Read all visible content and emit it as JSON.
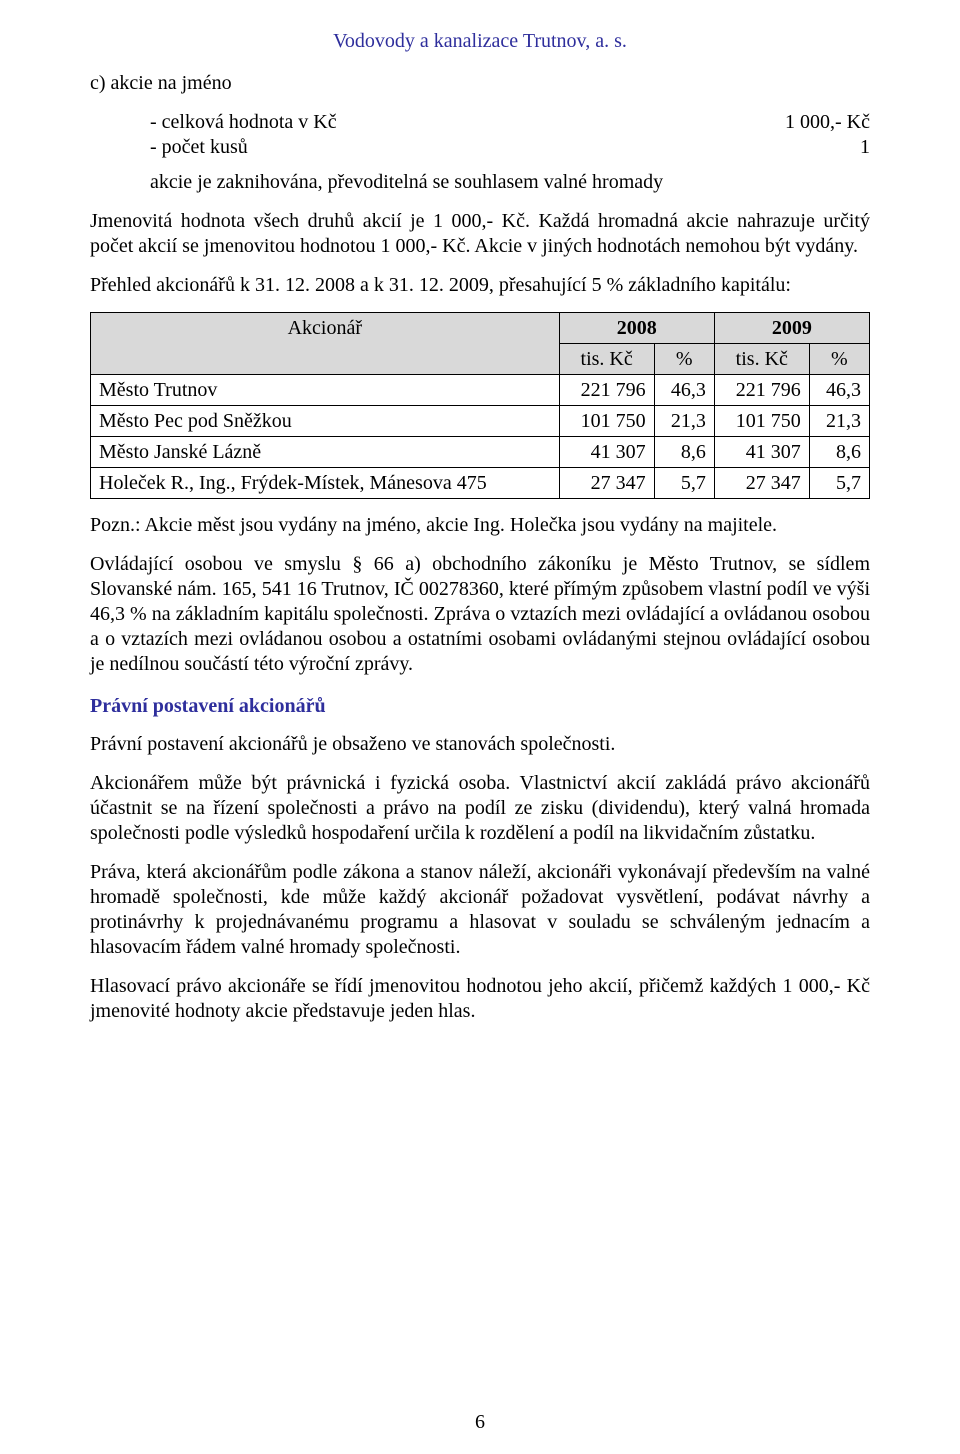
{
  "doc_header": "Vodovody a kanalizace Trutnov, a. s.",
  "section_c": {
    "title": "c) akcie na jméno",
    "line_value_label": "- celková hodnota v Kč",
    "line_value_amount": "1 000,- Kč",
    "line_count_label": "- počet kusů",
    "line_count_amount": "1",
    "book_entry_line": "akcie je zaknihována, převoditelná se souhlasem valné hromady"
  },
  "nominal_paragraph": "Jmenovitá hodnota všech druhů akcií je 1 000,- Kč. Každá hromadná akcie nahrazuje určitý počet akcií se jmenovitou hodnotou 1 000,- Kč. Akcie v jiných hodnotách nemohou být vydány.",
  "shareholders_intro": "Přehled akcionářů k 31. 12. 2008 a k 31. 12. 2009, přesahující 5 % základního kapitálu:",
  "shareholders_table": {
    "header_name": "Akcionář",
    "year_a": "2008",
    "year_b": "2009",
    "sub_value": "tis. Kč",
    "sub_pct": "%",
    "rows": [
      {
        "name": "Město Trutnov",
        "va": "221 796",
        "pa": "46,3",
        "vb": "221 796",
        "pb": "46,3"
      },
      {
        "name": "Město Pec pod Sněžkou",
        "va": "101 750",
        "pa": "21,3",
        "vb": "101 750",
        "pb": "21,3"
      },
      {
        "name": "Město Janské Lázně",
        "va": "41 307",
        "pa": "8,6",
        "vb": "41 307",
        "pb": "8,6"
      },
      {
        "name": "Holeček R., Ing., Frýdek-Místek, Mánesova 475",
        "va": "27 347",
        "pa": "5,7",
        "vb": "27 347",
        "pb": "5,7"
      }
    ]
  },
  "note_paragraph": "Pozn.: Akcie měst jsou vydány na jméno, akcie Ing. Holečka jsou vydány na majitele.",
  "controlling_paragraph": "Ovládající osobou ve smyslu § 66 a) obchodního zákoníku je Město Trutnov, se sídlem Slovanské nám. 165, 541 16  Trutnov, IČ 00278360, které přímým způsobem vlastní podíl ve výši 46,3 % na základním kapitálu společnosti. Zpráva o vztazích mezi ovládající a ovládanou osobou a o vztazích mezi ovládanou osobou a ostatními osobami ovládanými stejnou ovládající osobou je nedílnou součástí této výroční zprávy.",
  "legal_section_title": "Právní postavení akcionářů",
  "legal_p1": "Právní postavení akcionářů je obsaženo ve stanovách společnosti.",
  "legal_p2": "Akcionářem může být právnická i fyzická osoba. Vlastnictví akcií zakládá právo akcionářů účastnit se na řízení společnosti a právo na podíl ze zisku (dividendu), který valná hromada společnosti podle výsledků hospodaření určila k rozdělení a podíl na likvidačním zůstatku.",
  "legal_p3": "Práva, která akcionářům podle zákona a stanov náleží, akcionáři vykonávají především na valné hromadě společnosti, kde může každý akcionář požadovat vysvětlení, podávat návrhy a protinávrhy k projednávanému programu a hlasovat v souladu se schváleným jednacím a hlasovacím řádem valné hromady společnosti.",
  "legal_p4": "Hlasovací právo akcionáře se řídí jmenovitou hodnotou jeho akcií, přičemž každých 1 000,- Kč jmenovité hodnoty akcie představuje jeden hlas.",
  "page_number": "6"
}
